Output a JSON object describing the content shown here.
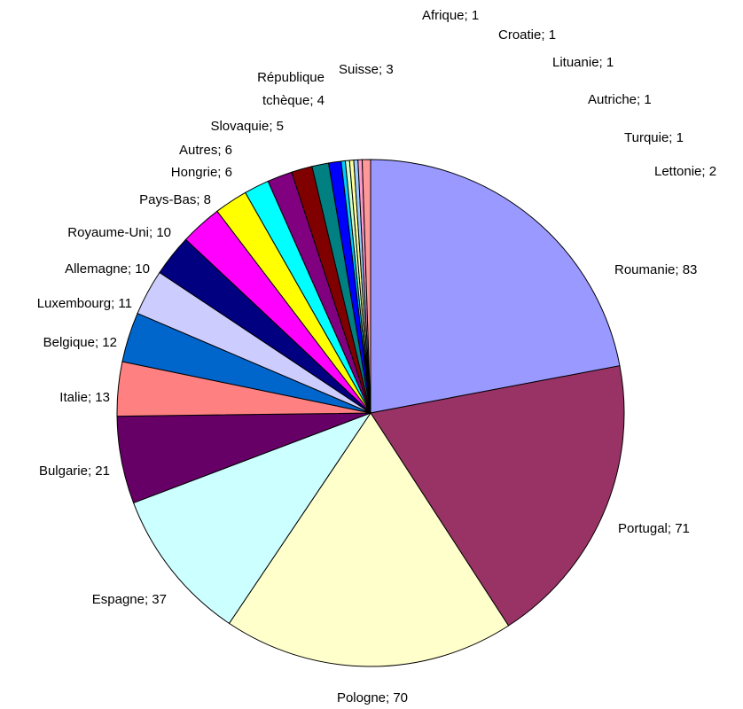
{
  "chart_data": {
    "type": "pie",
    "title": "",
    "slices": [
      {
        "label": "Roumanie",
        "value": 83,
        "display": "Roumanie; 83",
        "color": "#9999FF"
      },
      {
        "label": "Portugal",
        "value": 71,
        "display": "Portugal; 71",
        "color": "#993366"
      },
      {
        "label": "Pologne",
        "value": 70,
        "display": "Pologne; 70",
        "color": "#FFFFCC"
      },
      {
        "label": "Espagne",
        "value": 37,
        "display": "Espagne; 37",
        "color": "#CCFFFF"
      },
      {
        "label": "Bulgarie",
        "value": 21,
        "display": "Bulgarie; 21",
        "color": "#660066"
      },
      {
        "label": "Italie",
        "value": 13,
        "display": "Italie; 13",
        "color": "#FF8080"
      },
      {
        "label": "Belgique",
        "value": 12,
        "display": "Belgique; 12",
        "color": "#0066CC"
      },
      {
        "label": "Luxembourg",
        "value": 11,
        "display": "Luxembourg; 11",
        "color": "#CCCCFF"
      },
      {
        "label": "Allemagne",
        "value": 10,
        "display": "Allemagne; 10",
        "color": "#000080"
      },
      {
        "label": "Royaume-Uni",
        "value": 10,
        "display": "Royaume-Uni; 10",
        "color": "#FF00FF"
      },
      {
        "label": "Pays-Bas",
        "value": 8,
        "display": "Pays-Bas; 8",
        "color": "#FFFF00"
      },
      {
        "label": "Hongrie",
        "value": 6,
        "display": "Hongrie; 6",
        "color": "#00FFFF"
      },
      {
        "label": "Autres",
        "value": 6,
        "display": "Autres; 6",
        "color": "#800080"
      },
      {
        "label": "Slovaquie",
        "value": 5,
        "display": "Slovaquie; 5",
        "color": "#800000"
      },
      {
        "label": "République tchèque",
        "value": 4,
        "display": [
          "République",
          "tchèque; 4"
        ],
        "color": "#008080"
      },
      {
        "label": "Suisse",
        "value": 3,
        "display": "Suisse; 3",
        "color": "#0000FF"
      },
      {
        "label": "Afrique",
        "value": 1,
        "display": "Afrique; 1",
        "color": "#00CCFF"
      },
      {
        "label": "Croatie",
        "value": 1,
        "display": "Croatie; 1",
        "color": "#CCFFCC"
      },
      {
        "label": "Lituanie",
        "value": 1,
        "display": "Lituanie; 1",
        "color": "#FFFF99"
      },
      {
        "label": "Autriche",
        "value": 1,
        "display": "Autriche; 1",
        "color": "#99CCFF"
      },
      {
        "label": "Turquie",
        "value": 1,
        "display": "Turquie; 1",
        "color": "#FF99CC"
      },
      {
        "label": "Lettonie",
        "value": 2,
        "display": "Lettonie; 2",
        "color": "#FF9999"
      }
    ],
    "start": "12 o'clock",
    "direction": "clockwise",
    "legend": "none"
  }
}
